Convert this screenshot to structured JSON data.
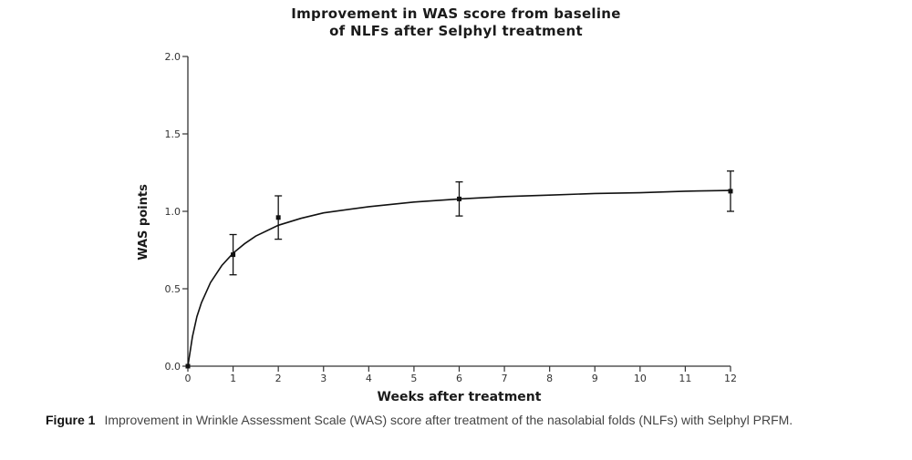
{
  "chart_data": {
    "type": "line",
    "title_lines": [
      "Improvement in WAS score from baseline",
      "of NLFs after Selphyl treatment"
    ],
    "xlabel": "Weeks after treatment",
    "ylabel": "WAS points",
    "xlim": [
      0,
      12
    ],
    "ylim": [
      0,
      2
    ],
    "x_ticks": [
      "0",
      "1",
      "2",
      "3",
      "4",
      "5",
      "6",
      "7",
      "8",
      "9",
      "10",
      "11",
      "12"
    ],
    "y_ticks": [
      "0.0",
      "0.5",
      "1.0",
      "1.5",
      "2.0"
    ],
    "grid": false,
    "legend": "none",
    "series": [
      {
        "points": [
          {
            "x": 0,
            "y": 0.0,
            "err": 0.0
          },
          {
            "x": 1,
            "y": 0.72,
            "err": 0.13
          },
          {
            "x": 2,
            "y": 0.96,
            "err": 0.14
          },
          {
            "x": 6,
            "y": 1.08,
            "err": 0.11
          },
          {
            "x": 12,
            "y": 1.13,
            "err": 0.13
          }
        ],
        "fit_curve": [
          [
            0,
            0
          ],
          [
            0.1,
            0.19
          ],
          [
            0.2,
            0.32
          ],
          [
            0.3,
            0.41
          ],
          [
            0.5,
            0.54
          ],
          [
            0.75,
            0.65
          ],
          [
            1,
            0.73
          ],
          [
            1.25,
            0.79
          ],
          [
            1.5,
            0.84
          ],
          [
            2,
            0.91
          ],
          [
            2.5,
            0.955
          ],
          [
            3,
            0.99
          ],
          [
            4,
            1.03
          ],
          [
            5,
            1.06
          ],
          [
            6,
            1.08
          ],
          [
            7,
            1.095
          ],
          [
            8,
            1.105
          ],
          [
            9,
            1.115
          ],
          [
            10,
            1.12
          ],
          [
            11,
            1.13
          ],
          [
            12,
            1.135
          ]
        ]
      }
    ],
    "colors": {
      "line": "#111111",
      "axis": "#333333",
      "tick_text": "#333333"
    }
  },
  "caption": {
    "label": "Figure 1",
    "text": "Improvement in Wrinkle Assessment Scale (WAS) score after treatment of the nasolabial folds (NLFs) with Selphyl PRFM."
  }
}
